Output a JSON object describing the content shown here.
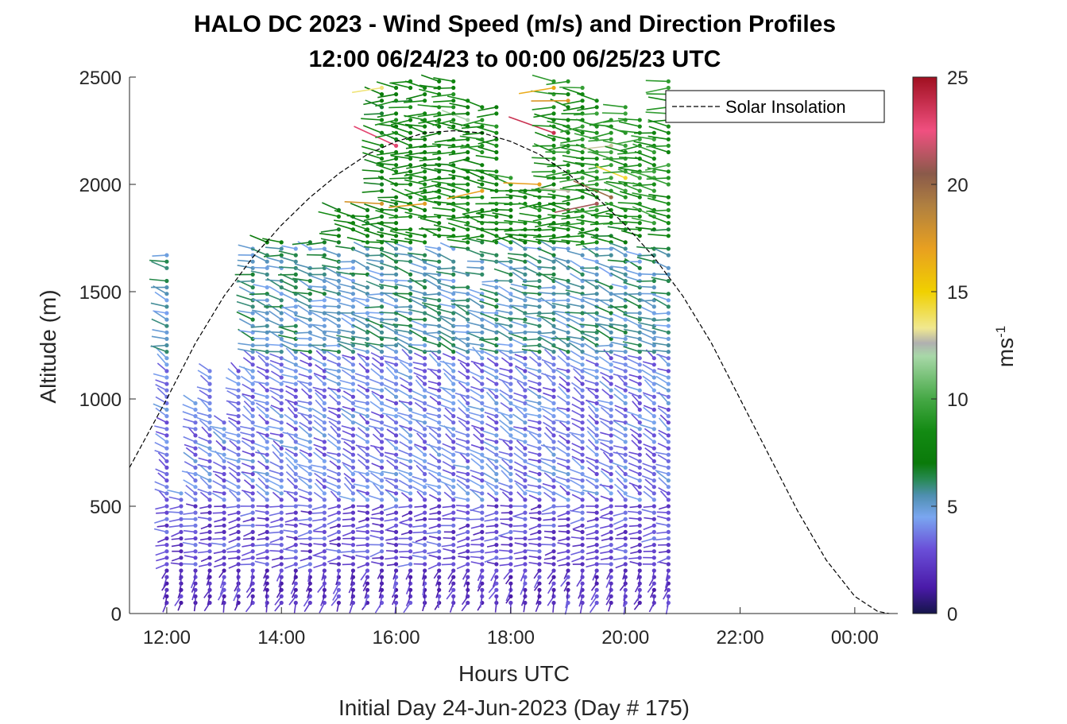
{
  "chart_data": {
    "type": "scatter",
    "title_line1": "HALO DC 2023 - Wind Speed (m/s) and Direction Profiles",
    "title_line2": "12:00 06/24/23 to 00:00 06/25/23  UTC",
    "xlabel": "Hours UTC",
    "xlabel2": "Initial Day 24-Jun-2023 (Day # 175)",
    "ylabel": "Altitude (m)",
    "xlim": [
      11.35,
      24.75
    ],
    "ylim": [
      0,
      2500
    ],
    "xticks": [
      12,
      14,
      16,
      18,
      20,
      22,
      24
    ],
    "xtick_labels": [
      "12:00",
      "14:00",
      "16:00",
      "18:00",
      "20:00",
      "22:00",
      "00:00"
    ],
    "yticks": [
      0,
      500,
      1000,
      1500,
      2000,
      2500
    ],
    "ytick_labels": [
      "0",
      "500",
      "1000",
      "1500",
      "2000",
      "2500"
    ],
    "legend": {
      "entries": [
        "Solar Insolation"
      ],
      "placement": "top-right"
    },
    "colorbar": {
      "label_base": "ms",
      "label_exp": "-1",
      "range": [
        0,
        25
      ],
      "ticks": [
        0,
        5,
        10,
        15,
        20,
        25
      ],
      "tick_labels": [
        "0",
        "5",
        "10",
        "15",
        "20",
        "25"
      ],
      "stops": [
        {
          "v": 0,
          "c": "#15154a"
        },
        {
          "v": 1.2,
          "c": "#4a1aa8"
        },
        {
          "v": 3,
          "c": "#6a4fd8"
        },
        {
          "v": 4.5,
          "c": "#7aa6f0"
        },
        {
          "v": 5.5,
          "c": "#4f8fb0"
        },
        {
          "v": 6.2,
          "c": "#2a8a5a"
        },
        {
          "v": 7,
          "c": "#0a7a0a"
        },
        {
          "v": 8.5,
          "c": "#138a13"
        },
        {
          "v": 10,
          "c": "#45a845"
        },
        {
          "v": 12,
          "c": "#a8d8a8"
        },
        {
          "v": 12.6,
          "c": "#b0b0b0"
        },
        {
          "v": 13.3,
          "c": "#f0e890"
        },
        {
          "v": 15,
          "c": "#f0d000"
        },
        {
          "v": 17,
          "c": "#e8a020"
        },
        {
          "v": 19,
          "c": "#b08040"
        },
        {
          "v": 20.5,
          "c": "#8a5a4a"
        },
        {
          "v": 22.5,
          "c": "#f05080"
        },
        {
          "v": 25,
          "c": "#a01020"
        }
      ]
    },
    "solar_insolation": {
      "name": "Solar Insolation",
      "style": "dashed",
      "x": [
        11.35,
        12.0,
        12.5,
        13.0,
        13.5,
        14.0,
        14.5,
        15.0,
        15.5,
        16.0,
        16.5,
        17.0,
        17.5,
        18.0,
        18.5,
        19.0,
        19.5,
        20.0,
        20.5,
        21.0,
        21.5,
        22.0,
        22.5,
        23.0,
        23.5,
        24.0,
        24.4,
        24.6
      ],
      "y": [
        680,
        1000,
        1260,
        1480,
        1660,
        1810,
        1940,
        2050,
        2140,
        2200,
        2240,
        2250,
        2240,
        2200,
        2140,
        2050,
        1940,
        1810,
        1660,
        1480,
        1260,
        1000,
        740,
        480,
        250,
        80,
        10,
        0
      ]
    },
    "profile_times": [
      12.0,
      12.25,
      12.5,
      12.75,
      13.0,
      13.25,
      13.5,
      13.75,
      14.0,
      14.25,
      14.5,
      14.75,
      15.0,
      15.25,
      15.5,
      15.75,
      16.0,
      16.25,
      16.5,
      16.75,
      17.0,
      17.25,
      17.5,
      17.75,
      18.0,
      18.25,
      18.5,
      18.75,
      19.0,
      19.25,
      19.5,
      19.75,
      20.0,
      20.25,
      20.5,
      20.75
    ],
    "profile_top_altitude": [
      1700,
      560,
      1000,
      1150,
      900,
      1150,
      1700,
      1750,
      1750,
      1750,
      1750,
      1750,
      1880,
      1850,
      1880,
      2450,
      2450,
      2500,
      2500,
      2500,
      2480,
      2400,
      2370,
      2370,
      2050,
      1980,
      2000,
      2500,
      2500,
      2450,
      2400,
      2300,
      2380,
      2320,
      2250,
      2500
    ],
    "gate_spacing_m": 30,
    "direction_by_layer": [
      {
        "altitude_max": 200,
        "direction_deg": 200,
        "typical_speed": 2.2
      },
      {
        "altitude_max": 500,
        "direction_deg": 265,
        "typical_speed": 2.8
      },
      {
        "altitude_max": 1200,
        "direction_deg": 300,
        "typical_speed": 3.8
      },
      {
        "altitude_max": 1700,
        "direction_deg": 285,
        "typical_speed": 5.5
      },
      {
        "altitude_max": 2500,
        "direction_deg": 275,
        "typical_speed": 7.5
      }
    ]
  }
}
